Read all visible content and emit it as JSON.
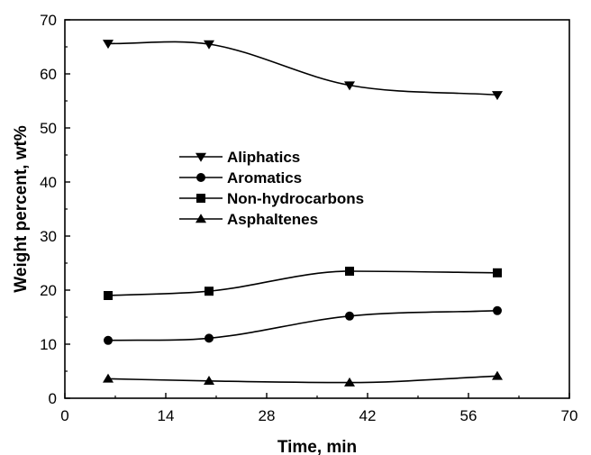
{
  "chart_data": {
    "type": "line",
    "title": "",
    "xlabel": "Time, min",
    "ylabel": "Weight percent, wt%",
    "xlim": [
      0,
      70
    ],
    "ylim": [
      0,
      70
    ],
    "xticks": [
      0,
      14,
      28,
      42,
      56,
      70
    ],
    "yticks": [
      0,
      10,
      20,
      30,
      40,
      50,
      60,
      70
    ],
    "grid": false,
    "legend_position": "center-left",
    "series": [
      {
        "name": "Aliphatics",
        "marker": "triangle-down",
        "x": [
          6,
          20,
          39.5,
          60
        ],
        "y": [
          65.6,
          65.5,
          57.9,
          56.1
        ]
      },
      {
        "name": "Aromatics",
        "marker": "circle",
        "x": [
          6,
          20,
          39.5,
          60
        ],
        "y": [
          10.7,
          11.1,
          15.2,
          16.2
        ]
      },
      {
        "name": "Non-hydrocarbons",
        "marker": "square",
        "x": [
          6,
          20,
          39.5,
          60
        ],
        "y": [
          19.0,
          19.8,
          23.5,
          23.2
        ]
      },
      {
        "name": "Asphaltenes",
        "marker": "triangle-up",
        "x": [
          6,
          20,
          39.5,
          60
        ],
        "y": [
          3.6,
          3.2,
          2.9,
          4.1
        ]
      }
    ]
  }
}
